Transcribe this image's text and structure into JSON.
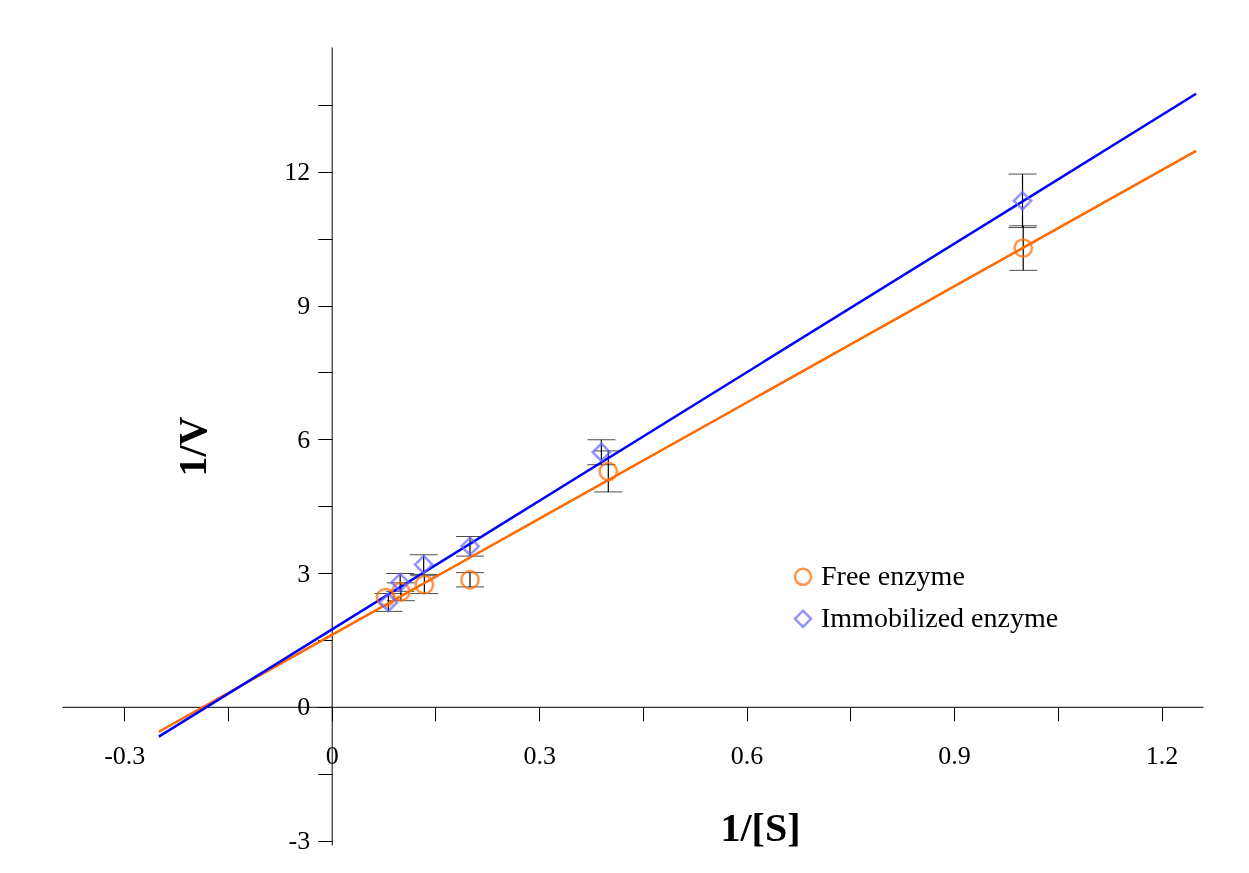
{
  "chart_data": {
    "type": "scatter",
    "xlabel": "1/[S]",
    "ylabel": "1/V",
    "xlim": [
      -0.39,
      1.26
    ],
    "ylim": [
      -3.1,
      14.8
    ],
    "xticks": [
      -0.3,
      {
        "value": -0.15,
        "label": null
      },
      0,
      {
        "value": 0.15,
        "label": null
      },
      0.3,
      {
        "value": 0.45,
        "label": null
      },
      0.6,
      {
        "value": 0.75,
        "label": null
      },
      0.9,
      {
        "value": 1.05,
        "label": null
      },
      1.2
    ],
    "yticks": [
      -3,
      {
        "value": -1.5,
        "label": null
      },
      0,
      {
        "value": 1.5,
        "label": null
      },
      3,
      {
        "value": 4.5,
        "label": null
      },
      6,
      {
        "value": 7.5,
        "label": null
      },
      9,
      {
        "value": 10.5,
        "label": null
      },
      12,
      {
        "value": 13.5,
        "label": null
      }
    ],
    "grid": false,
    "legend": "bottom right",
    "series": [
      {
        "type": "line",
        "color": "#ff6a00",
        "x": [
          -0.25,
          1.25
        ],
        "values": [
          -0.56,
          12.47
        ],
        "marker": "none"
      },
      {
        "type": "line",
        "color": "#0000ff",
        "x": [
          -0.25,
          1.25
        ],
        "values": [
          -0.67,
          13.75
        ],
        "marker": "none"
      },
      {
        "type": "scatter",
        "name": "Free enzyme",
        "color": "#ff6a00",
        "marker": "circle",
        "x": [
          0.078,
          0.1,
          0.134,
          0.2,
          0.4,
          1.0
        ],
        "values": [
          2.45,
          2.58,
          2.74,
          2.85,
          5.28,
          10.29
        ],
        "errors": [
          null,
          0.2,
          0.2,
          0.16,
          0.46,
          0.5
        ]
      },
      {
        "type": "scatter",
        "name": "Immobilized enzyme",
        "color": "#6666ff",
        "marker": "diamond",
        "x": [
          0.082,
          0.099,
          0.133,
          0.2,
          0.39,
          0.999
        ],
        "values": [
          2.34,
          2.79,
          3.19,
          3.6,
          5.71,
          11.35
        ],
        "errors": [
          0.2,
          0.2,
          0.22,
          0.22,
          0.28,
          0.6
        ]
      }
    ]
  }
}
